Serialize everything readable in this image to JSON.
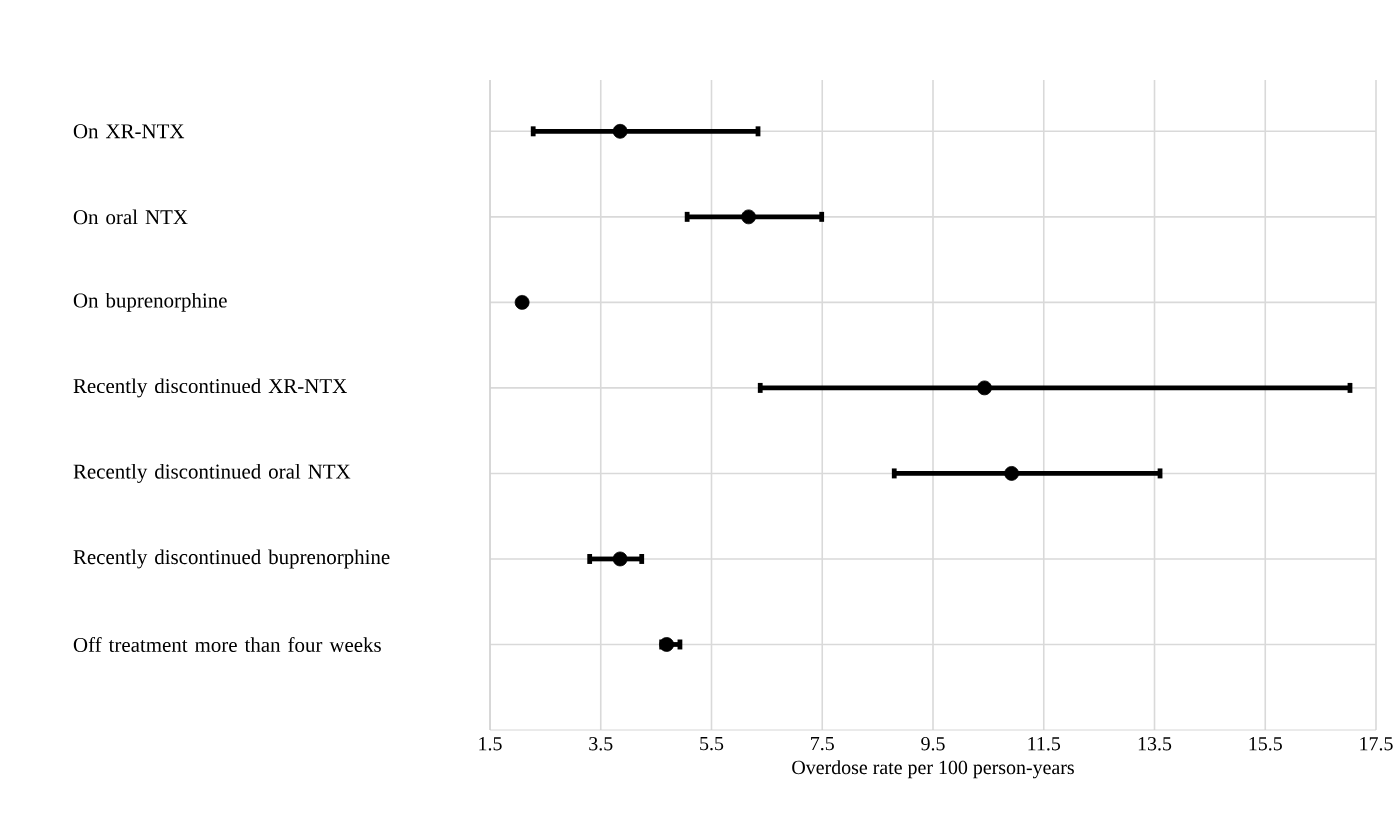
{
  "chart_data": {
    "type": "scatter",
    "orientation": "horizontal",
    "xlabel": "Overdose rate per 100 person-years",
    "categories": [
      "On XR-NTX",
      "On oral NTX",
      "On buprenorphine",
      "Recently discontinued XR-NTX",
      "Recently discontinued oral NTX",
      "Recently discontinued buprenorphine",
      "Off treatment more than four weeks"
    ],
    "values": [
      3.85,
      6.17,
      2.08,
      10.43,
      10.92,
      3.85,
      4.69
    ],
    "errors": [
      [
        2.28,
        6.34
      ],
      [
        5.06,
        7.49
      ],
      null,
      [
        6.38,
        17.03
      ],
      [
        8.8,
        13.6
      ],
      [
        3.3,
        4.24
      ],
      [
        4.6,
        4.93
      ]
    ],
    "color": "#000000",
    "marker": "circle",
    "xlim": [
      1.5,
      17.5
    ],
    "xticks": [
      1.5,
      3.5,
      5.5,
      7.5,
      9.5,
      11.5,
      13.5,
      15.5,
      17.5
    ],
    "grid": true
  }
}
